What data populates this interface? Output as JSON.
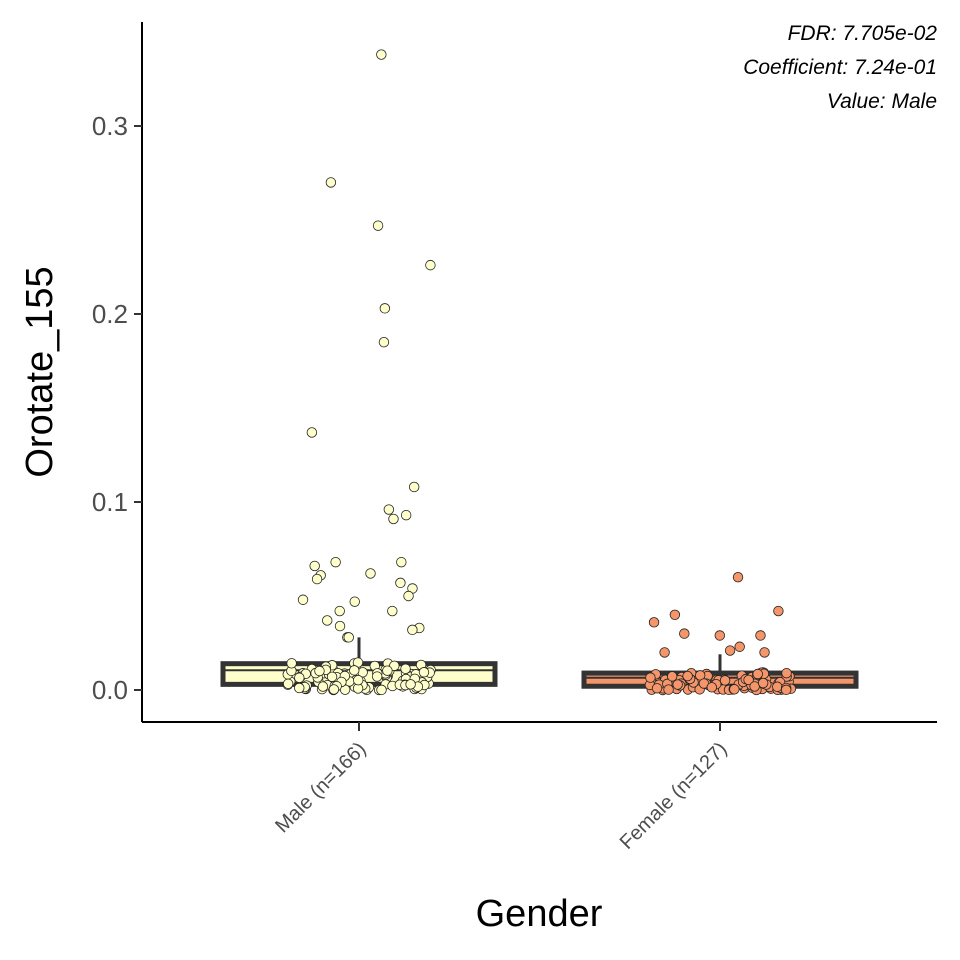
{
  "chart_data": {
    "type": "box",
    "xlabel": "Gender",
    "ylabel": "Orotate_155",
    "ylim": [
      -0.017,
      0.355
    ],
    "yticks": [
      0.0,
      0.1,
      0.2,
      0.3
    ],
    "ytick_labels": [
      "0.0",
      "0.1",
      "0.2",
      "0.3"
    ],
    "categories": [
      "Male (n=166)",
      "Female (n=127)"
    ],
    "annotations": [
      "FDR: 7.705e-02",
      "Coefficient: 7.24e-01",
      "Value: Male"
    ],
    "grid": false,
    "legend": "none",
    "series": [
      {
        "category": "Male (n=166)",
        "color": "#FFFFCC",
        "box": {
          "q1": 0.003,
          "median": 0.0105,
          "q3": 0.014,
          "whisker_low": 0.0,
          "whisker_high": 0.028
        },
        "outliers": [
          0.338,
          0.27,
          0.247,
          0.226,
          0.203,
          0.185,
          0.137,
          0.108,
          0.096,
          0.093,
          0.091,
          0.068,
          0.068,
          0.066,
          0.062,
          0.061,
          0.059,
          0.057,
          0.054,
          0.05,
          0.048,
          0.047,
          0.042,
          0.042,
          0.037,
          0.034,
          0.033,
          0.032,
          0.028,
          0.028
        ]
      },
      {
        "category": "Female (n=127)",
        "color": "#F4956A",
        "box": {
          "q1": 0.002,
          "median": 0.0065,
          "q3": 0.009,
          "whisker_low": 0.0,
          "whisker_high": 0.019
        },
        "outliers": [
          0.06,
          0.042,
          0.04,
          0.036,
          0.03,
          0.029,
          0.029,
          0.023,
          0.021,
          0.02,
          0.02
        ]
      }
    ]
  }
}
